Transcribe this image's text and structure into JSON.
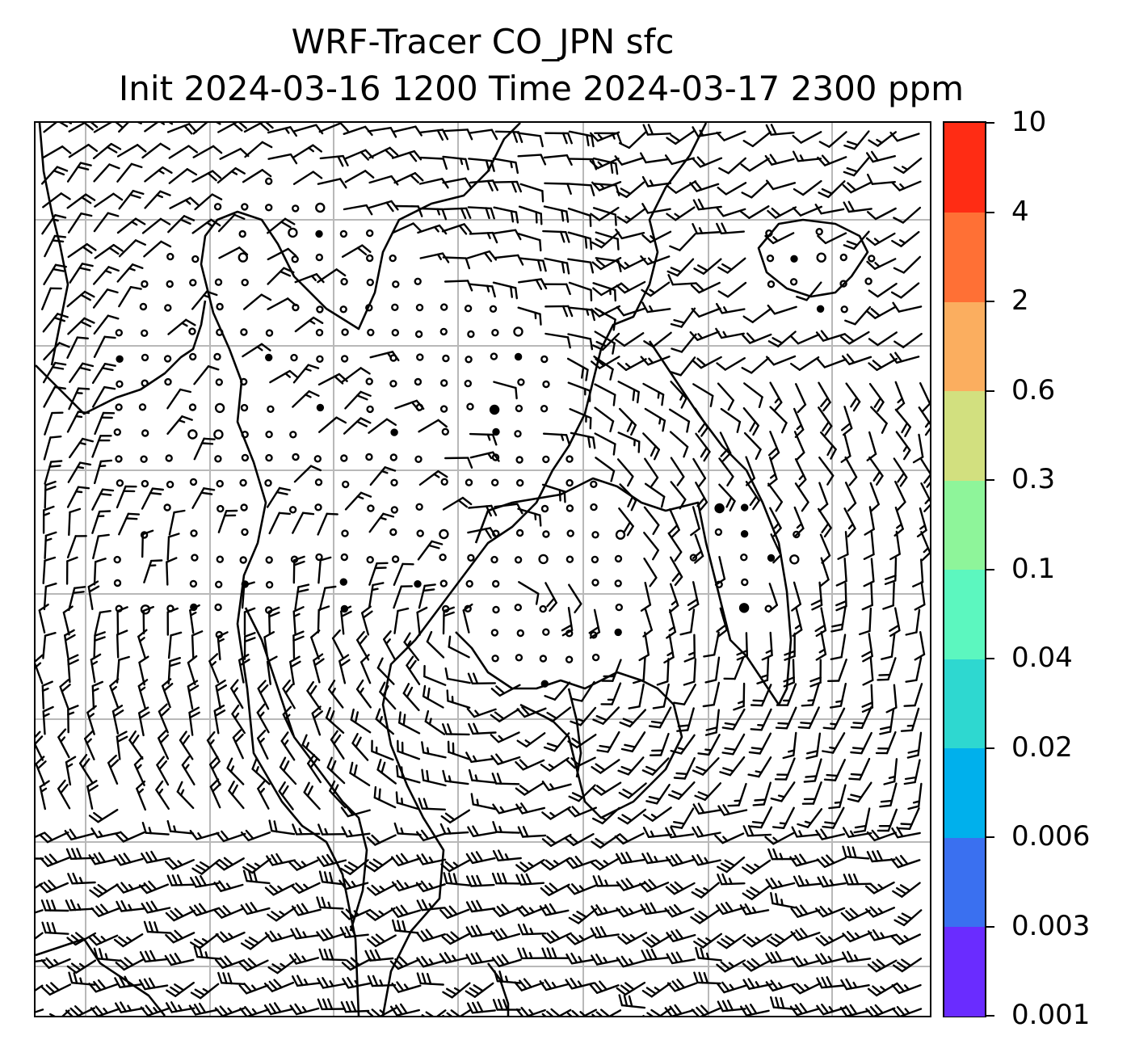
{
  "title": {
    "line1": "WRF-Tracer CO_JPN sfc",
    "line2": "Init 2024-03-16 1200 Time 2024-03-17 2300 ppm"
  },
  "map": {
    "field": "CO_JPN",
    "level": "sfc",
    "units": "ppm",
    "overlay": "wind barbs",
    "gridlines": true,
    "coastlines": true,
    "tracer_shading_visible": false
  },
  "colorbar": {
    "orientation": "vertical",
    "placement": "right",
    "ticks": [
      "0.001",
      "0.003",
      "0.006",
      "0.02",
      "0.04",
      "0.1",
      "0.3",
      "0.6",
      "2",
      "4",
      "10"
    ],
    "colors": [
      "#6a2cff",
      "#3a70f0",
      "#00b0ec",
      "#2ed8d0",
      "#5cf7bf",
      "#8ef59a",
      "#d2e07f",
      "#fbae5f",
      "#ff7035",
      "#ff2c14"
    ]
  }
}
